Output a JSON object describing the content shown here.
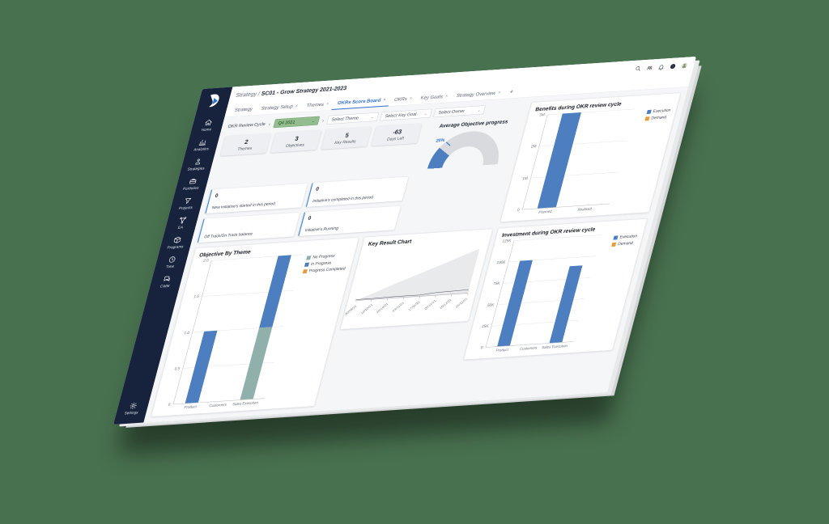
{
  "colors": {
    "background": "#48714f",
    "sidebar": "#17233d",
    "accent_blue": "#2f6fd0",
    "bar_blue": "#4d7ebf",
    "teal": "#8fb0ab",
    "orange": "#e89a3c",
    "chip_green": "#93bd8f",
    "gauge_track": "#d8dadd"
  },
  "glyphs": {
    "close": "×",
    "plus": "+",
    "chev_left": "‹",
    "chev_right": "›",
    "caret": "⌄"
  },
  "topbar": {
    "breadcrumb": "Strategy /",
    "title": "SC01 - Grow Strategy 2021-2023"
  },
  "sidebar": {
    "items": [
      {
        "label": "Home",
        "icon": "home-icon"
      },
      {
        "label": "Analytics",
        "icon": "analytics-icon"
      },
      {
        "label": "Strategies",
        "icon": "strategies-icon"
      },
      {
        "label": "Portfolios",
        "icon": "portfolios-icon"
      },
      {
        "label": "Projects",
        "icon": "projects-icon"
      },
      {
        "label": "EA",
        "icon": "ea-icon"
      },
      {
        "label": "Programs",
        "icon": "programs-icon"
      },
      {
        "label": "Time",
        "icon": "time-icon"
      },
      {
        "label": "CWM",
        "icon": "cwm-icon"
      }
    ],
    "settings": {
      "label": "Settings",
      "icon": "settings-icon"
    }
  },
  "tabs": [
    {
      "label": "Strategy",
      "closable": false,
      "active": false
    },
    {
      "label": "Strategy Setup",
      "closable": true,
      "active": false
    },
    {
      "label": "Themes",
      "closable": true,
      "active": false
    },
    {
      "label": "OKRs Score Board",
      "closable": true,
      "active": true
    },
    {
      "label": "OKRs",
      "closable": true,
      "active": false
    },
    {
      "label": "Key Goals",
      "closable": true,
      "active": false
    },
    {
      "label": "Strategy Overview",
      "closable": true,
      "active": false
    }
  ],
  "filters": {
    "cycle_label": "OKR Review Cycle",
    "cycle_value": "Q4 2021",
    "theme_placeholder": "Select Theme",
    "key_goal_placeholder": "Select Key Goal",
    "owner_placeholder": "Select Owner"
  },
  "stats": [
    {
      "value": "2",
      "label": "Themes"
    },
    {
      "value": "3",
      "label": "Objectives"
    },
    {
      "value": "5",
      "label": "Key Results"
    },
    {
      "value": "-63",
      "label": "Days Left"
    }
  ],
  "gauge": {
    "title": "Average Objective progress",
    "percent": 20,
    "label": "20%",
    "color": "#4d7ebf",
    "track": "#d8dadd"
  },
  "info_cards": [
    {
      "value": "0",
      "label": "New initiative's started in this period"
    },
    {
      "value": "0",
      "label": "Initiative's completed in this period"
    },
    {
      "value": "",
      "label": "Off Track/On Track balance"
    },
    {
      "value": "0",
      "label": "Initiative's Running"
    }
  ],
  "chart_data": [
    {
      "id": "benefits",
      "type": "bar",
      "title": "Benefits during OKR review cycle",
      "categories": [
        "Planned",
        "Realised"
      ],
      "series": [
        {
          "name": "Execution",
          "color": "#4d7ebf",
          "values": [
            3000000,
            0
          ]
        },
        {
          "name": "Demand",
          "color": "#e89a3c",
          "values": [
            0,
            0
          ]
        }
      ],
      "y_ticks": [
        "3M",
        "2M",
        "1M",
        "0"
      ],
      "ylim": [
        0,
        3000000
      ],
      "grid": true,
      "legend_position": "top-right"
    },
    {
      "id": "investment",
      "type": "bar",
      "title": "Investment during OKR review cycle",
      "categories": [
        "Product",
        "Customers",
        "Sales Execution"
      ],
      "series": [
        {
          "name": "Execution",
          "color": "#4d7ebf",
          "values": [
            100000,
            0,
            90000
          ]
        },
        {
          "name": "Demand",
          "color": "#e89a3c",
          "values": [
            0,
            0,
            0
          ]
        }
      ],
      "y_ticks": [
        "125K",
        "100K",
        "75K",
        "50K",
        "25K",
        "0"
      ],
      "ylim": [
        0,
        125000
      ],
      "grid": true,
      "legend_position": "top-right"
    },
    {
      "id": "objective-by-theme",
      "type": "bar",
      "title": "Objective By Theme",
      "categories": [
        "Product",
        "Customers",
        "Sales Execution"
      ],
      "series": [
        {
          "name": "No Progress",
          "color": "#8fb0ab",
          "values": [
            0,
            0,
            1
          ]
        },
        {
          "name": "In Progress",
          "color": "#4d7ebf",
          "values": [
            1,
            0,
            1
          ]
        },
        {
          "name": "Progress Completed",
          "color": "#e89a3c",
          "values": [
            0,
            0,
            0
          ]
        }
      ],
      "y_ticks": [
        "2.0",
        "1.5",
        "1.0",
        "0.5",
        "0"
      ],
      "ylim": [
        0,
        2
      ],
      "grid": true,
      "legend_position": "top-right"
    },
    {
      "id": "key-result",
      "type": "area",
      "title": "Key Result Chart",
      "x_labels": [
        "30/09/21",
        "10/10/21",
        "20/10/21",
        "03/11/21",
        "17/11/21",
        "26/11/21",
        "10/12/21",
        "24/12/21"
      ],
      "series": [
        {
          "name": "Planned",
          "color": "#e9eaec",
          "values": [
            0,
            14,
            29,
            43,
            57,
            71,
            86,
            100
          ]
        },
        {
          "name": "Actual",
          "color": "#4a4f57",
          "values": [
            2,
            2,
            3,
            3,
            3,
            6,
            7,
            8
          ]
        }
      ],
      "ylim": [
        0,
        100
      ],
      "grid": false,
      "legend": false
    }
  ]
}
